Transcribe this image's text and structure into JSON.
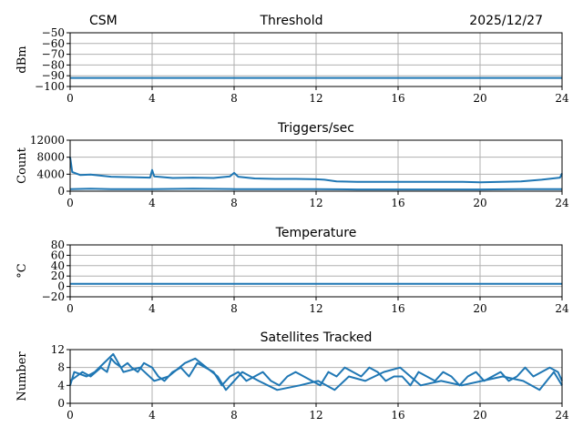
{
  "header": {
    "left": "CSM",
    "center": "Threshold",
    "right": "2025/12/27"
  },
  "colors": {
    "series": "#1f77b4",
    "grid": "#b0b0b0",
    "axis": "#000000"
  },
  "chart_data": [
    {
      "type": "line",
      "title": "",
      "xlabel": "",
      "ylabel": "dBm",
      "xlim": [
        0,
        24
      ],
      "ylim": [
        -100,
        -50
      ],
      "xticks": [
        "0",
        "4",
        "8",
        "12",
        "16",
        "20",
        "24"
      ],
      "yticks": [
        "-50",
        "-60",
        "-70",
        "-80",
        "-90",
        "-100"
      ],
      "grid": true,
      "series": [
        {
          "x": [
            0,
            24
          ],
          "y": [
            -92,
            -92
          ]
        }
      ]
    },
    {
      "type": "line",
      "title": "Triggers/sec",
      "xlabel": "",
      "ylabel": "Count",
      "xlim": [
        0,
        24
      ],
      "ylim": [
        0,
        12000
      ],
      "xticks": [
        "0",
        "4",
        "8",
        "12",
        "16",
        "20",
        "24"
      ],
      "yticks": [
        "0",
        "4000",
        "8000",
        "12000"
      ],
      "grid": true,
      "series": [
        {
          "x": [
            0,
            0.1,
            0.5,
            1,
            2,
            3,
            3.9,
            4,
            4.1,
            5,
            6,
            7,
            7.8,
            8,
            8.2,
            9,
            10,
            11,
            12,
            12.4,
            13,
            14,
            15,
            16,
            17,
            18,
            19,
            20,
            21,
            22,
            23,
            23.9,
            24
          ],
          "y": [
            8000,
            4500,
            3800,
            3900,
            3400,
            3300,
            3200,
            5000,
            3500,
            3100,
            3200,
            3100,
            3500,
            4300,
            3400,
            3000,
            2900,
            2900,
            2800,
            2700,
            2300,
            2200,
            2200,
            2200,
            2200,
            2200,
            2200,
            2100,
            2200,
            2300,
            2700,
            3200,
            4200
          ]
        },
        {
          "x": [
            0,
            1,
            2,
            4,
            6,
            8,
            10,
            12,
            14,
            16,
            18,
            20,
            22,
            24
          ],
          "y": [
            500,
            600,
            500,
            500,
            600,
            500,
            500,
            500,
            400,
            400,
            400,
            400,
            500,
            500
          ]
        }
      ]
    },
    {
      "type": "line",
      "title": "Temperature",
      "xlabel": "",
      "ylabel": "°C",
      "xlim": [
        0,
        24
      ],
      "ylim": [
        -20,
        80
      ],
      "xticks": [
        "0",
        "4",
        "8",
        "12",
        "16",
        "20",
        "24"
      ],
      "yticks": [
        "80",
        "60",
        "40",
        "20",
        "0",
        "-20"
      ],
      "grid": true,
      "series": [
        {
          "x": [
            0,
            24
          ],
          "y": [
            5,
            5
          ]
        }
      ]
    },
    {
      "type": "line",
      "title": "Satellites Tracked",
      "xlabel": "",
      "ylabel": "Number",
      "xlim": [
        0,
        24
      ],
      "ylim": [
        0,
        12
      ],
      "xticks": [
        "0",
        "4",
        "8",
        "12",
        "16",
        "20",
        "24"
      ],
      "yticks": [
        "0",
        "4",
        "8",
        "12"
      ],
      "grid": true,
      "series": [
        {
          "x": [
            0,
            0.3,
            0.6,
            1,
            1.5,
            1.8,
            2,
            2.2,
            2.5,
            2.8,
            3,
            3.3,
            3.6,
            4,
            4.3,
            4.6,
            5,
            5.4,
            5.8,
            6.2,
            6.6,
            7,
            7.4,
            7.8,
            8.2,
            8.6,
            9,
            9.4,
            9.8,
            10.2,
            10.6,
            11,
            11.4,
            11.8,
            12.2,
            12.6,
            13,
            13.4,
            13.8,
            14.2,
            14.6,
            15,
            15.4,
            15.8,
            16.2,
            16.6,
            17,
            17.4,
            17.8,
            18.2,
            18.6,
            19,
            19.4,
            19.8,
            20.2,
            20.6,
            21,
            21.4,
            21.8,
            22.2,
            22.6,
            23,
            23.4,
            23.8,
            24
          ],
          "y": [
            5,
            6,
            7,
            6,
            8,
            7,
            10,
            9,
            8,
            9,
            8,
            7,
            9,
            8,
            6,
            5,
            7,
            8,
            6,
            9,
            8,
            7,
            4,
            6,
            7,
            5,
            6,
            7,
            5,
            4,
            6,
            7,
            6,
            5,
            4,
            7,
            6,
            8,
            7,
            6,
            8,
            7,
            5,
            6,
            6,
            4,
            7,
            6,
            5,
            7,
            6,
            4,
            6,
            7,
            5,
            6,
            7,
            5,
            6,
            8,
            6,
            7,
            8,
            7,
            5
          ]
        },
        {
          "x": [
            0,
            0.2,
            0.8,
            1.2,
            2.1,
            2.6,
            3.4,
            4.1,
            4.8,
            5.6,
            6.1,
            7.2,
            7.6,
            8.4,
            9.2,
            10.1,
            11.2,
            12.1,
            12.9,
            13.6,
            14.4,
            15.3,
            16.1,
            17.1,
            18.1,
            19.1,
            20.1,
            21.1,
            22.1,
            22.9,
            23.6,
            24
          ],
          "y": [
            4,
            7,
            6,
            7,
            11,
            7,
            8,
            5,
            6,
            9,
            10,
            6,
            3,
            7,
            5,
            3,
            4,
            5,
            3,
            6,
            5,
            7,
            8,
            4,
            5,
            4,
            5,
            6,
            5,
            3,
            7,
            4
          ]
        }
      ]
    }
  ]
}
